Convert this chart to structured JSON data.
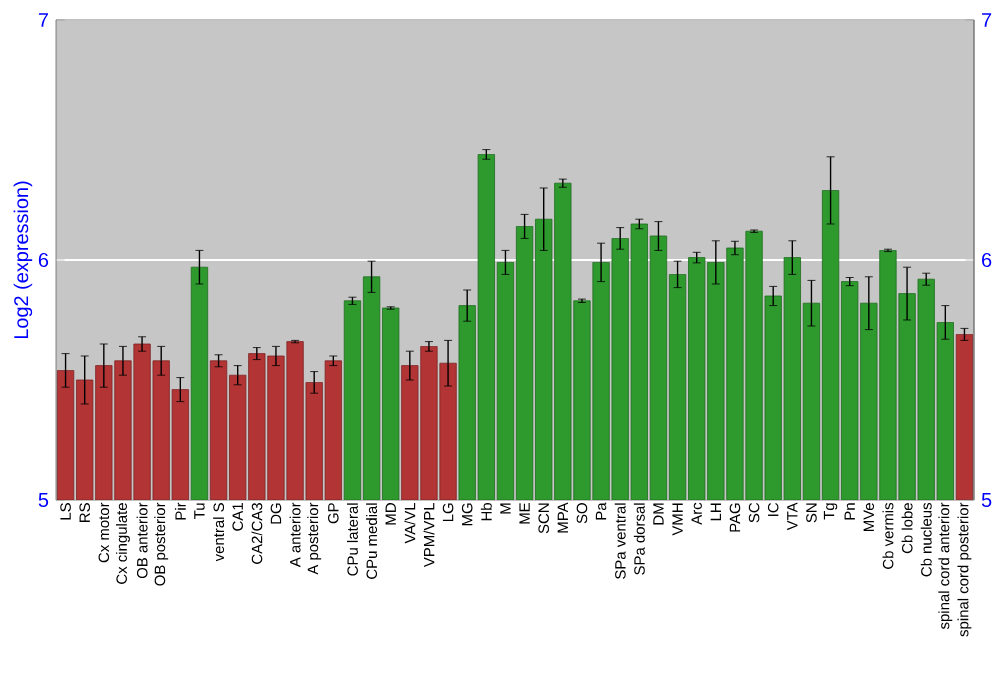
{
  "chart_data": {
    "type": "bar",
    "ylabel": "Log2 (expression)",
    "categories": [
      "LS",
      "RS",
      "Cx motor",
      "Cx cingulate",
      "OB anterior",
      "OB posterior",
      "Pir",
      "Tu",
      "ventral S",
      "CA1",
      "CA2/CA3",
      "DG",
      "A anterior",
      "A posterior",
      "GP",
      "CPu lateral",
      "CPu medial",
      "MD",
      "VA/VL",
      "VPM/VPL",
      "LG",
      "MG",
      "Hb",
      "M",
      "ME",
      "SCN",
      "MPA",
      "SO",
      "Pa",
      "SPa ventral",
      "SPa dorsal",
      "DM",
      "VMH",
      "Arc",
      "LH",
      "PAG",
      "SC",
      "IC",
      "VTA",
      "SN",
      "Tg",
      "Pn",
      "MVe",
      "Cb vermis",
      "Cb lobe",
      "Cb nucleus",
      "spinal cord anterior",
      "spinal cord posterior"
    ],
    "values": [
      5.54,
      5.5,
      5.56,
      5.58,
      5.65,
      5.58,
      5.46,
      5.97,
      5.58,
      5.52,
      5.61,
      5.6,
      5.66,
      5.49,
      5.58,
      5.83,
      5.93,
      5.8,
      5.56,
      5.64,
      5.57,
      5.81,
      6.44,
      5.99,
      6.14,
      6.17,
      6.32,
      5.83,
      5.99,
      6.09,
      6.15,
      6.1,
      5.94,
      6.01,
      5.99,
      6.05,
      6.12,
      5.85,
      6.01,
      5.82,
      6.29,
      5.91,
      5.82,
      6.04,
      5.86,
      5.92,
      5.74,
      5.69
    ],
    "errors": [
      0.07,
      0.1,
      0.09,
      0.06,
      0.03,
      0.06,
      0.05,
      0.07,
      0.025,
      0.04,
      0.025,
      0.04,
      0.005,
      0.045,
      0.02,
      0.015,
      0.065,
      0.005,
      0.06,
      0.02,
      0.095,
      0.065,
      0.02,
      0.05,
      0.05,
      0.13,
      0.017,
      0.007,
      0.08,
      0.045,
      0.02,
      0.06,
      0.055,
      0.022,
      0.09,
      0.028,
      0.005,
      0.04,
      0.07,
      0.095,
      0.14,
      0.017,
      0.11,
      0.005,
      0.11,
      0.025,
      0.07,
      0.025
    ],
    "colors": [
      "#b23434",
      "#b23434",
      "#b23434",
      "#b23434",
      "#b23434",
      "#b23434",
      "#b23434",
      "#2e9a2e",
      "#b23434",
      "#b23434",
      "#b23434",
      "#b23434",
      "#b23434",
      "#b23434",
      "#b23434",
      "#2e9a2e",
      "#2e9a2e",
      "#2e9a2e",
      "#b23434",
      "#b23434",
      "#b23434",
      "#2e9a2e",
      "#2e9a2e",
      "#2e9a2e",
      "#2e9a2e",
      "#2e9a2e",
      "#2e9a2e",
      "#2e9a2e",
      "#2e9a2e",
      "#2e9a2e",
      "#2e9a2e",
      "#2e9a2e",
      "#2e9a2e",
      "#2e9a2e",
      "#2e9a2e",
      "#2e9a2e",
      "#2e9a2e",
      "#2e9a2e",
      "#2e9a2e",
      "#2e9a2e",
      "#2e9a2e",
      "#2e9a2e",
      "#2e9a2e",
      "#2e9a2e",
      "#2e9a2e",
      "#2e9a2e",
      "#2e9a2e",
      "#b23434"
    ],
    "ylim": [
      5,
      7
    ],
    "yticks": [
      5,
      6,
      7
    ],
    "y2lim": [
      5,
      7
    ],
    "y2ticks": [
      5,
      6,
      7
    ],
    "grid": "y"
  }
}
